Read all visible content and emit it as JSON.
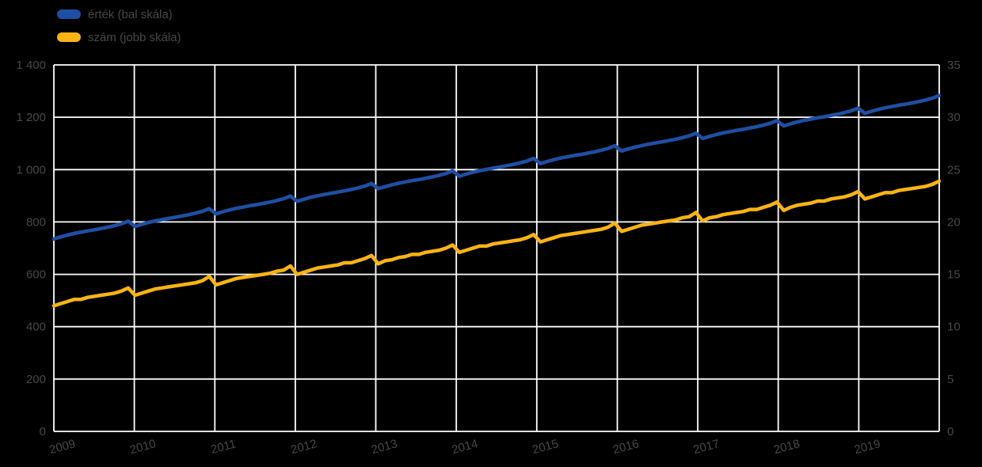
{
  "chart_data": {
    "type": "line",
    "title": "",
    "x_unit": "month",
    "x_range": [
      "2009",
      "2019"
    ],
    "x_tick_labels": [
      "2009",
      "2010",
      "2011",
      "2012",
      "2013",
      "2014",
      "2015",
      "2016",
      "2017",
      "2018",
      "2019"
    ],
    "left_axis": {
      "min": 0,
      "max": 1400,
      "ticks": [
        "0",
        "200",
        "400",
        "600",
        "800",
        "1 000",
        "1 200",
        "1 400"
      ]
    },
    "right_axis": {
      "min": 0,
      "max": 35,
      "ticks": [
        "0",
        "5",
        "10",
        "15",
        "20",
        "25",
        "30",
        "35"
      ]
    },
    "grid": true,
    "legend_position": "top-left",
    "colors": {
      "background": "#000000",
      "grid": "#ffffff",
      "text": "#474747"
    },
    "series": [
      {
        "name": "érték (bal skála)",
        "axis": "left",
        "color": "#1f4fa4",
        "values": [
          735,
          743,
          750,
          756,
          761,
          766,
          770,
          775,
          780,
          786,
          793,
          803,
          783,
          791,
          798,
          804,
          809,
          814,
          818,
          823,
          828,
          834,
          841,
          851,
          831,
          839,
          846,
          852,
          857,
          862,
          866,
          871,
          876,
          882,
          889,
          899,
          879,
          887,
          894,
          900,
          905,
          910,
          914,
          919,
          924,
          930,
          937,
          947,
          927,
          935,
          942,
          948,
          953,
          958,
          962,
          967,
          972,
          978,
          985,
          995,
          975,
          983,
          990,
          996,
          1001,
          1006,
          1010,
          1015,
          1020,
          1026,
          1033,
          1043,
          1023,
          1031,
          1038,
          1044,
          1049,
          1054,
          1058,
          1063,
          1068,
          1074,
          1081,
          1091,
          1071,
          1079,
          1086,
          1092,
          1097,
          1102,
          1106,
          1111,
          1116,
          1122,
          1129,
          1139,
          1119,
          1127,
          1134,
          1140,
          1145,
          1150,
          1154,
          1159,
          1164,
          1170,
          1177,
          1187,
          1167,
          1175,
          1182,
          1188,
          1193,
          1198,
          1202,
          1207,
          1212,
          1218,
          1225,
          1235,
          1215,
          1223,
          1230,
          1236,
          1241,
          1246,
          1250,
          1255,
          1260,
          1266,
          1273,
          1283
        ]
      },
      {
        "name": "szám (jobb skála)",
        "axis": "right",
        "color": "#f9b414",
        "values": [
          12.0,
          12.2,
          12.4,
          12.6,
          12.6,
          12.8,
          12.9,
          13.0,
          13.1,
          13.2,
          13.4,
          13.7,
          13.0,
          13.2,
          13.4,
          13.6,
          13.7,
          13.8,
          13.9,
          14.0,
          14.1,
          14.2,
          14.4,
          14.8,
          14.0,
          14.2,
          14.4,
          14.6,
          14.7,
          14.8,
          14.9,
          15.0,
          15.1,
          15.3,
          15.4,
          15.8,
          15.0,
          15.2,
          15.4,
          15.6,
          15.7,
          15.8,
          15.9,
          16.1,
          16.1,
          16.3,
          16.5,
          16.8,
          16.0,
          16.3,
          16.4,
          16.6,
          16.7,
          16.9,
          16.9,
          17.1,
          17.2,
          17.3,
          17.5,
          17.8,
          17.1,
          17.3,
          17.5,
          17.7,
          17.7,
          17.9,
          18.0,
          18.1,
          18.2,
          18.3,
          18.5,
          18.8,
          18.1,
          18.3,
          18.5,
          18.7,
          18.8,
          18.9,
          19.0,
          19.1,
          19.2,
          19.3,
          19.5,
          19.9,
          19.1,
          19.3,
          19.5,
          19.7,
          19.8,
          19.9,
          20.0,
          20.1,
          20.2,
          20.4,
          20.5,
          20.9,
          20.1,
          20.4,
          20.5,
          20.7,
          20.8,
          20.9,
          21.0,
          21.2,
          21.2,
          21.4,
          21.6,
          21.9,
          21.1,
          21.4,
          21.6,
          21.7,
          21.8,
          22.0,
          22.0,
          22.2,
          22.3,
          22.4,
          22.6,
          22.9,
          22.2,
          22.4,
          22.6,
          22.8,
          22.8,
          23.0,
          23.1,
          23.2,
          23.3,
          23.4,
          23.6,
          23.9
        ]
      }
    ]
  }
}
